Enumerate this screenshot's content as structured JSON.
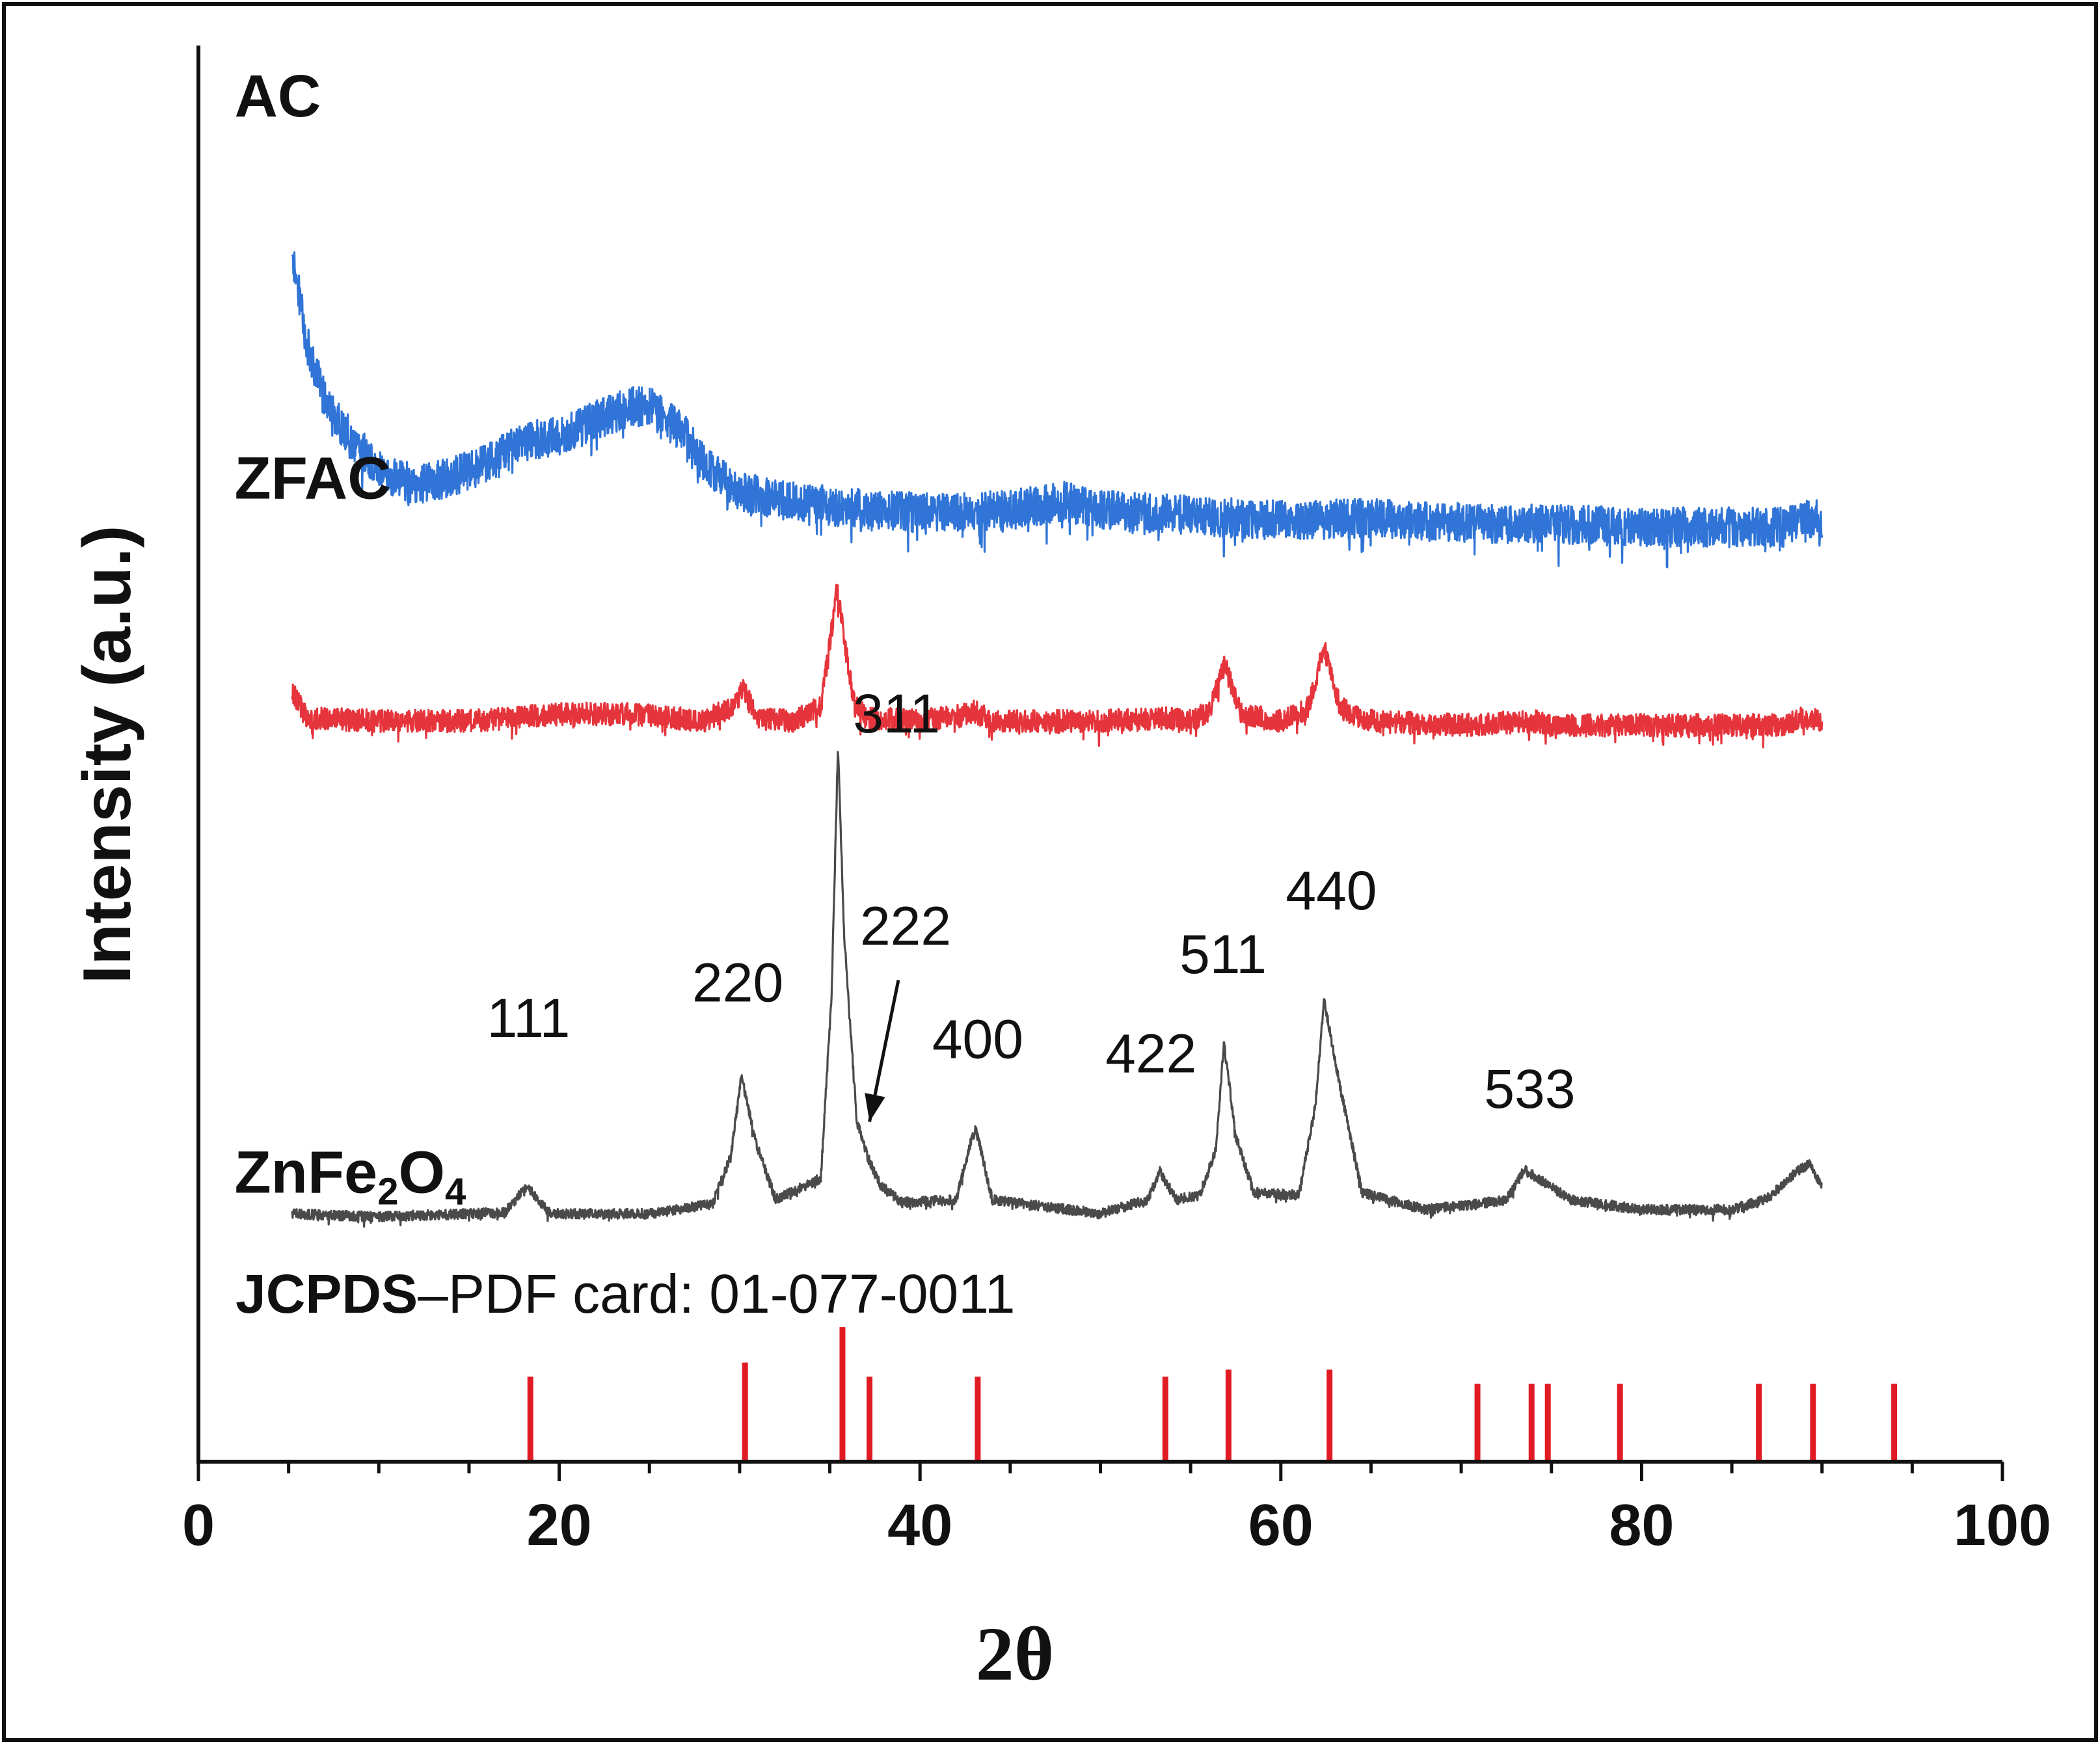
{
  "chart_data": {
    "type": "line",
    "title": "",
    "xlabel": "2θ",
    "ylabel": "Intensity (a.u.)",
    "xlim": [
      0,
      100
    ],
    "ylim": [
      0,
      100
    ],
    "x_ticks": [
      0,
      20,
      40,
      60,
      80,
      100
    ],
    "series": [
      {
        "name": "AC",
        "color": "#2f74d6",
        "x": [
          5.2,
          5.5,
          6,
          7,
          8,
          9,
          10,
          11,
          12,
          14,
          16,
          18,
          20,
          22,
          24,
          25,
          26,
          27,
          28,
          29,
          30,
          32,
          35,
          40,
          45,
          48,
          50,
          55,
          60,
          65,
          70,
          75,
          80,
          85,
          88,
          89,
          90
        ],
        "y": [
          85,
          83,
          79,
          75,
          73,
          71.5,
          70,
          69.5,
          69,
          69.5,
          70.5,
          72,
          72.5,
          73.5,
          74.5,
          74.5,
          73.5,
          72.5,
          70.5,
          69.5,
          68.5,
          68,
          67.5,
          67,
          67.2,
          67.8,
          67.2,
          66.8,
          66.5,
          66.6,
          66.3,
          66.2,
          66,
          66,
          66,
          66.8,
          66.4
        ],
        "noise": 1.4
      },
      {
        "name": "ZFAC",
        "color": "#e5343b",
        "x": [
          5.2,
          6,
          10,
          15,
          20,
          24,
          28,
          29.5,
          30.2,
          31,
          33,
          34.5,
          35.4,
          36.3,
          37,
          40,
          42.5,
          43,
          44,
          50,
          53.5,
          55,
          56,
          56.9,
          57.8,
          60,
          61.5,
          62.4,
          63.3,
          65,
          70,
          74,
          75,
          80,
          88,
          89,
          90
        ],
        "y": [
          54.5,
          52.5,
          52.3,
          52.3,
          52.8,
          52.8,
          52.3,
          53.3,
          54.5,
          52.5,
          52.3,
          53.3,
          61.5,
          53.8,
          52.5,
          52.3,
          52.8,
          53,
          52.3,
          52.3,
          52.5,
          52.3,
          53,
          56.2,
          52.8,
          52.3,
          53.2,
          57.5,
          53.2,
          52.3,
          52,
          52.3,
          52,
          52,
          52,
          52.6,
          52.2
        ],
        "noise": 0.8
      },
      {
        "name": "ZnFe2O4",
        "color": "#4a4a4a",
        "x": [
          5.2,
          10,
          17,
          18.2,
          19.5,
          25,
          28.5,
          29.5,
          30.1,
          30.9,
          32,
          34.5,
          35.1,
          35.45,
          35.8,
          36.5,
          37.1,
          37.8,
          39,
          42,
          42.8,
          43.1,
          44,
          50,
          52.6,
          53.3,
          54.2,
          55.5,
          56.4,
          56.85,
          57.5,
          58.5,
          61,
          61.9,
          62.4,
          63.2,
          64.5,
          68,
          71,
          72.5,
          73.5,
          74,
          74.8,
          76,
          80,
          85,
          87,
          88.6,
          89.3,
          90
        ],
        "y": [
          17.5,
          17.3,
          17.6,
          19.5,
          17.5,
          17.5,
          18.2,
          21.5,
          27.2,
          22.5,
          18.5,
          20,
          33,
          50.5,
          37,
          24,
          21.5,
          19.5,
          18.3,
          18.5,
          22.5,
          23.5,
          18.5,
          17.5,
          18.5,
          20.5,
          18.5,
          18.8,
          22,
          29.6,
          23,
          19,
          18.8,
          25,
          32.6,
          27,
          19,
          17.8,
          18.2,
          18.5,
          20.6,
          20.2,
          19.6,
          18.5,
          17.8,
          17.8,
          18.6,
          20.5,
          21,
          19.5
        ],
        "noise": 0.35
      }
    ],
    "series_labels": [
      {
        "text": "AC",
        "x": 2,
        "y": 95
      },
      {
        "text": "ZFAC",
        "x": 2,
        "y": 68
      },
      {
        "text": "ZnFe",
        "sub1": "2",
        "mid": "O",
        "sub2": "4",
        "x": 2,
        "y": 19
      }
    ],
    "peak_labels": [
      {
        "text": "111",
        "x": 18.3,
        "y": 30
      },
      {
        "text": "220",
        "x": 29.9,
        "y": 32.5
      },
      {
        "text": "311",
        "x": 38.7,
        "y": 51.5
      },
      {
        "text": "222",
        "x": 39.2,
        "y": 36.5
      },
      {
        "text": "400",
        "x": 43.2,
        "y": 28.5
      },
      {
        "text": "422",
        "x": 52.8,
        "y": 27.5
      },
      {
        "text": "511",
        "x": 56.8,
        "y": 34.5
      },
      {
        "text": "440",
        "x": 62.8,
        "y": 39
      },
      {
        "text": "533",
        "x": 73.8,
        "y": 25
      }
    ],
    "arrow": {
      "from": [
        38.8,
        34
      ],
      "to": [
        37.2,
        24
      ]
    },
    "reference": {
      "label_bold": "JCPDS",
      "label_rest": "–PDF card: 01-077-0011",
      "color": "#e01b24",
      "x": [
        18.4,
        30.3,
        35.7,
        37.2,
        43.2,
        53.6,
        57.1,
        62.7,
        70.9,
        73.9,
        74.8,
        78.8,
        86.5,
        89.5,
        94.0
      ],
      "heights": [
        6,
        7,
        9.5,
        6,
        6,
        6,
        6.5,
        6.5,
        5.5,
        5.5,
        5.5,
        5.5,
        5.5,
        5.5,
        5.5
      ]
    }
  }
}
